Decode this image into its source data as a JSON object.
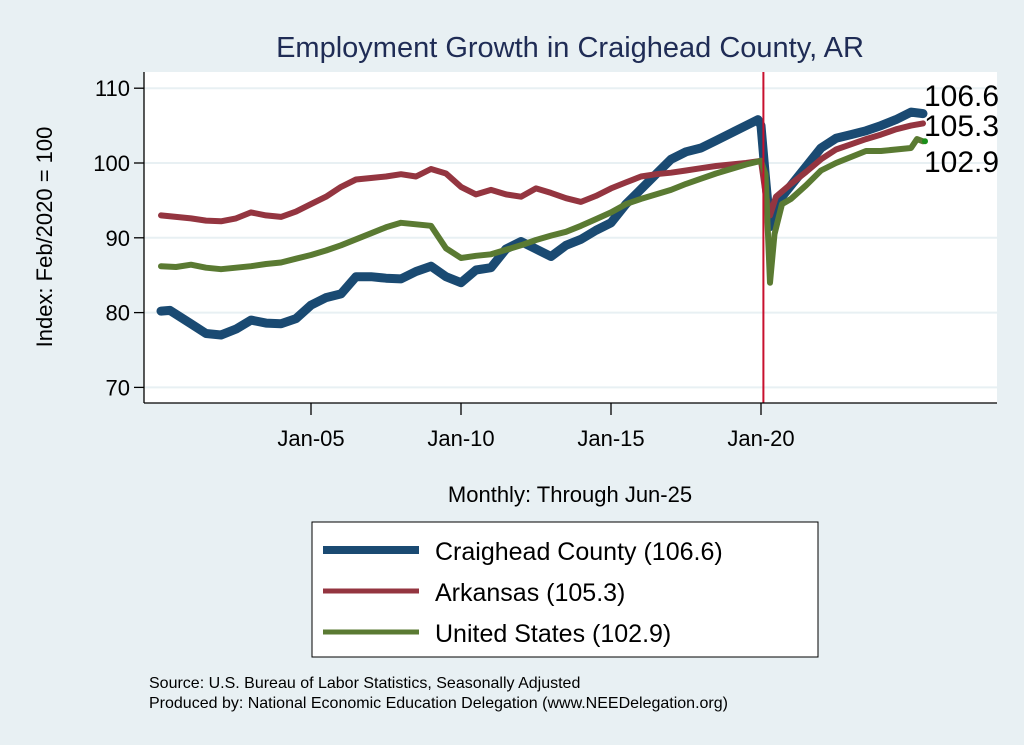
{
  "chart_data": {
    "type": "line",
    "title": "Employment Growth in Craighead  County, AR",
    "xlabel": "Monthly: Through Jun-25",
    "ylabel": "Index: Feb/2020 = 100",
    "ylim": [
      68,
      112
    ],
    "xlim": [
      1999.4,
      2028.0
    ],
    "yticks": [
      70,
      80,
      90,
      100,
      110
    ],
    "ytick_labels": [
      "70",
      "80",
      "90",
      "100",
      "110"
    ],
    "xticks": [
      2005,
      2010,
      2015,
      2020
    ],
    "xtick_labels": [
      "Jan-05",
      "Jan-10",
      "Jan-15",
      "Jan-20"
    ],
    "grid": true,
    "reference_line_x": 2020.08,
    "reference_line_color": "#c8102e",
    "series": [
      {
        "name": "Craighead  County",
        "legend_label": "Craighead  County (106.6)",
        "end_label": "106.6",
        "color": "#1a4a72",
        "x": [
          2000.0,
          2000.3,
          2001.0,
          2001.5,
          2002.0,
          2002.5,
          2003.0,
          2003.5,
          2004.0,
          2004.5,
          2005.0,
          2005.5,
          2006.0,
          2006.5,
          2007.0,
          2007.5,
          2008.0,
          2008.5,
          2009.0,
          2009.5,
          2010.0,
          2010.5,
          2011.0,
          2011.5,
          2012.0,
          2012.5,
          2013.0,
          2013.5,
          2014.0,
          2014.5,
          2015.0,
          2015.5,
          2016.0,
          2016.5,
          2017.0,
          2017.5,
          2018.0,
          2018.5,
          2019.0,
          2019.5,
          2019.9,
          2020.0,
          2020.15,
          2020.3,
          2020.5,
          2021.0,
          2021.5,
          2022.0,
          2022.5,
          2023.0,
          2023.5,
          2024.0,
          2024.5,
          2025.0,
          2025.4
        ],
        "y": [
          80.2,
          80.3,
          78.5,
          77.2,
          77.0,
          77.8,
          79.0,
          78.6,
          78.5,
          79.2,
          81.0,
          82.0,
          82.5,
          84.8,
          84.8,
          84.6,
          84.5,
          85.5,
          86.2,
          84.8,
          84.0,
          85.7,
          86.0,
          88.5,
          89.5,
          88.5,
          87.5,
          89.0,
          89.8,
          91.0,
          92.0,
          94.5,
          96.5,
          98.5,
          100.5,
          101.5,
          102.0,
          103.0,
          104.0,
          105.0,
          105.8,
          105.0,
          98.0,
          91.5,
          94.5,
          97.0,
          99.5,
          102.0,
          103.3,
          103.8,
          104.3,
          105.0,
          105.8,
          106.8,
          106.6
        ]
      },
      {
        "name": "Arkansas",
        "legend_label": "Arkansas (105.3)",
        "end_label": "105.3",
        "color": "#943540",
        "x": [
          2000.0,
          2000.5,
          2001.0,
          2001.5,
          2002.0,
          2002.5,
          2003.0,
          2003.5,
          2004.0,
          2004.5,
          2005.0,
          2005.5,
          2006.0,
          2006.5,
          2007.0,
          2007.5,
          2008.0,
          2008.5,
          2009.0,
          2009.5,
          2010.0,
          2010.5,
          2011.0,
          2011.5,
          2012.0,
          2012.5,
          2013.0,
          2013.5,
          2014.0,
          2014.5,
          2015.0,
          2015.5,
          2016.0,
          2016.5,
          2017.0,
          2017.5,
          2018.0,
          2018.5,
          2019.0,
          2019.5,
          2020.0,
          2020.15,
          2020.3,
          2020.5,
          2021.0,
          2021.5,
          2022.0,
          2022.5,
          2023.0,
          2023.5,
          2024.0,
          2024.5,
          2025.0,
          2025.4
        ],
        "y": [
          93.0,
          92.8,
          92.6,
          92.3,
          92.2,
          92.6,
          93.4,
          93.0,
          92.8,
          93.5,
          94.5,
          95.5,
          96.8,
          97.8,
          98.0,
          98.2,
          98.5,
          98.2,
          99.2,
          98.6,
          96.8,
          95.8,
          96.4,
          95.8,
          95.5,
          96.6,
          96.0,
          95.3,
          94.8,
          95.6,
          96.6,
          97.4,
          98.2,
          98.5,
          98.7,
          99.0,
          99.3,
          99.6,
          99.8,
          100.0,
          100.3,
          96.0,
          93.0,
          95.5,
          97.2,
          98.8,
          100.5,
          101.8,
          102.5,
          103.2,
          103.8,
          104.5,
          105.0,
          105.3
        ]
      },
      {
        "name": "United States",
        "legend_label": "United States (102.9)",
        "end_label": "102.9",
        "color": "#5a7a32",
        "x": [
          2000.0,
          2000.5,
          2001.0,
          2001.5,
          2002.0,
          2002.5,
          2003.0,
          2003.5,
          2004.0,
          2004.5,
          2005.0,
          2005.5,
          2006.0,
          2006.5,
          2007.0,
          2007.5,
          2008.0,
          2008.5,
          2009.0,
          2009.5,
          2010.0,
          2010.5,
          2011.0,
          2011.5,
          2012.0,
          2012.5,
          2013.0,
          2013.5,
          2014.0,
          2014.5,
          2015.0,
          2015.5,
          2016.0,
          2016.5,
          2017.0,
          2017.5,
          2018.0,
          2018.5,
          2019.0,
          2019.5,
          2020.0,
          2020.15,
          2020.3,
          2020.45,
          2020.7,
          2021.0,
          2021.5,
          2022.0,
          2022.5,
          2023.0,
          2023.5,
          2024.0,
          2024.5,
          2025.0,
          2025.2,
          2025.4
        ],
        "y": [
          86.2,
          86.1,
          86.4,
          86.0,
          85.8,
          86.0,
          86.2,
          86.5,
          86.7,
          87.2,
          87.7,
          88.3,
          89.0,
          89.8,
          90.6,
          91.4,
          92.0,
          91.8,
          91.6,
          88.6,
          87.3,
          87.6,
          87.8,
          88.4,
          89.0,
          89.7,
          90.3,
          90.8,
          91.6,
          92.5,
          93.4,
          94.5,
          95.2,
          95.8,
          96.4,
          97.2,
          97.9,
          98.6,
          99.2,
          99.8,
          100.3,
          98.5,
          84.0,
          90.5,
          94.5,
          95.2,
          97.0,
          99.0,
          100.0,
          100.8,
          101.6,
          101.6,
          101.8,
          102.0,
          103.2,
          102.9
        ]
      }
    ]
  },
  "notes": {
    "source": "Source: U.S. Bureau of Labor Statistics, Seasonally Adjusted",
    "produced_by": "Produced by: National Economic Education Delegation (www.NEEDelegation.org)"
  },
  "colors": {
    "background": "#e8f0f3",
    "plot_background": "#ffffff",
    "gridline": "#e8f0f3",
    "title": "#1f2c55"
  }
}
